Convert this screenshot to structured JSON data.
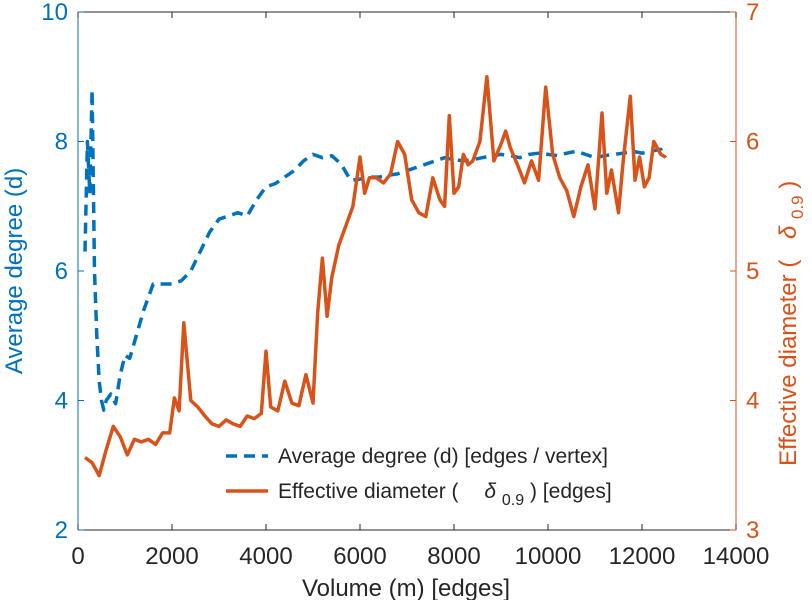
{
  "chart_data": {
    "type": "line",
    "x_axis": {
      "label": "Volume (m) [edges]",
      "range": [
        0,
        14000
      ],
      "ticks": [
        0,
        2000,
        4000,
        6000,
        8000,
        10000,
        12000,
        14000
      ],
      "tick_labels": [
        "0",
        "2000",
        "4000",
        "6000",
        "8000",
        "10000",
        "12000",
        "14000"
      ]
    },
    "y_left": {
      "label": "Average degree (d)",
      "range": [
        2,
        10
      ],
      "ticks": [
        2,
        4,
        6,
        8,
        10
      ],
      "tick_labels": [
        "2",
        "4",
        "6",
        "8",
        "10"
      ],
      "color": "#0072BD"
    },
    "y_right": {
      "label_prefix": "Effective diameter (",
      "label_symbol": "δ",
      "label_subscript": "0.9",
      "label_suffix": ")",
      "range": [
        3,
        7
      ],
      "ticks": [
        3,
        4,
        5,
        6,
        7
      ],
      "tick_labels": [
        "3",
        "4",
        "5",
        "6",
        "7"
      ],
      "color": "#D95319"
    },
    "legend": {
      "placement": "bottom-right",
      "entries": [
        {
          "text": "Average degree (d) [edges / vertex]"
        },
        {
          "prefix": "Effective diameter (",
          "symbol": "δ",
          "subscript": "0.9",
          "suffix": ") [edges]"
        }
      ]
    },
    "series": [
      {
        "name": "Average degree (d) [edges / vertex]",
        "axis": "left",
        "style": "dashed",
        "color": "#0072BD",
        "x": [
          150,
          200,
          250,
          300,
          350,
          400,
          450,
          500,
          550,
          600,
          700,
          800,
          900,
          1000,
          1100,
          1200,
          1400,
          1600,
          1800,
          2000,
          2200,
          2400,
          2600,
          2800,
          3000,
          3200,
          3400,
          3600,
          3800,
          4000,
          4200,
          4400,
          4600,
          4800,
          5000,
          5200,
          5400,
          5600,
          5800,
          6000,
          6200,
          6400,
          6600,
          6800,
          7000,
          7200,
          7400,
          7600,
          7800,
          8000,
          8200,
          8400,
          8600,
          8800,
          9000,
          9200,
          9400,
          9600,
          9800,
          10000,
          10200,
          10400,
          10600,
          10800,
          11000,
          11200,
          11400,
          11600,
          11800,
          12000,
          12200,
          12400,
          12500
        ],
        "values": [
          6.3,
          8.0,
          7.2,
          8.8,
          6.0,
          5.0,
          4.3,
          4.0,
          3.85,
          4.0,
          4.1,
          3.95,
          4.4,
          4.7,
          4.65,
          4.9,
          5.4,
          5.8,
          5.8,
          5.8,
          5.85,
          6.0,
          6.3,
          6.6,
          6.8,
          6.85,
          6.9,
          6.85,
          7.1,
          7.3,
          7.35,
          7.45,
          7.55,
          7.7,
          7.8,
          7.75,
          7.78,
          7.65,
          7.4,
          7.42,
          7.45,
          7.45,
          7.48,
          7.5,
          7.55,
          7.6,
          7.65,
          7.7,
          7.75,
          7.72,
          7.7,
          7.72,
          7.75,
          7.78,
          7.8,
          7.78,
          7.75,
          7.8,
          7.82,
          7.8,
          7.78,
          7.82,
          7.85,
          7.8,
          7.75,
          7.78,
          7.8,
          7.82,
          7.85,
          7.82,
          7.85,
          7.88,
          7.75
        ]
      },
      {
        "name": "Effective diameter (δ0.9) [edges]",
        "axis": "right",
        "style": "solid",
        "color": "#D95319",
        "x": [
          150,
          300,
          450,
          600,
          750,
          900,
          1050,
          1200,
          1350,
          1500,
          1650,
          1800,
          1950,
          2050,
          2150,
          2250,
          2400,
          2550,
          2700,
          2850,
          3000,
          3150,
          3300,
          3450,
          3600,
          3750,
          3900,
          4000,
          4100,
          4250,
          4400,
          4550,
          4700,
          4850,
          5000,
          5100,
          5200,
          5300,
          5400,
          5550,
          5700,
          5850,
          6000,
          6100,
          6200,
          6350,
          6500,
          6650,
          6800,
          6950,
          7100,
          7250,
          7400,
          7550,
          7700,
          7800,
          7900,
          8000,
          8100,
          8200,
          8300,
          8400,
          8550,
          8700,
          8850,
          9000,
          9100,
          9200,
          9350,
          9500,
          9650,
          9800,
          9950,
          10100,
          10250,
          10400,
          10550,
          10700,
          10850,
          11000,
          11150,
          11250,
          11350,
          11500,
          11600,
          11750,
          11850,
          11950,
          12050,
          12150,
          12250,
          12400,
          12500
        ],
        "values": [
          3.56,
          3.52,
          3.42,
          3.62,
          3.8,
          3.72,
          3.58,
          3.7,
          3.68,
          3.7,
          3.66,
          3.75,
          3.75,
          4.02,
          3.92,
          4.6,
          4.0,
          3.95,
          3.88,
          3.82,
          3.8,
          3.85,
          3.82,
          3.8,
          3.88,
          3.86,
          3.9,
          4.38,
          3.95,
          3.92,
          4.15,
          3.98,
          3.96,
          4.2,
          3.98,
          4.68,
          5.1,
          4.65,
          4.95,
          5.2,
          5.35,
          5.5,
          5.88,
          5.6,
          5.72,
          5.72,
          5.68,
          5.75,
          6.0,
          5.9,
          5.55,
          5.45,
          5.42,
          5.72,
          5.55,
          5.5,
          6.2,
          5.6,
          5.65,
          5.9,
          5.82,
          5.85,
          6.0,
          6.5,
          5.85,
          5.98,
          6.08,
          5.95,
          5.82,
          5.68,
          5.85,
          5.7,
          6.42,
          5.9,
          5.72,
          5.62,
          5.42,
          5.65,
          5.82,
          5.48,
          6.22,
          5.6,
          5.78,
          5.45,
          5.85,
          6.35,
          5.7,
          5.88,
          5.65,
          5.72,
          6.0,
          5.9,
          5.88
        ]
      }
    ]
  }
}
